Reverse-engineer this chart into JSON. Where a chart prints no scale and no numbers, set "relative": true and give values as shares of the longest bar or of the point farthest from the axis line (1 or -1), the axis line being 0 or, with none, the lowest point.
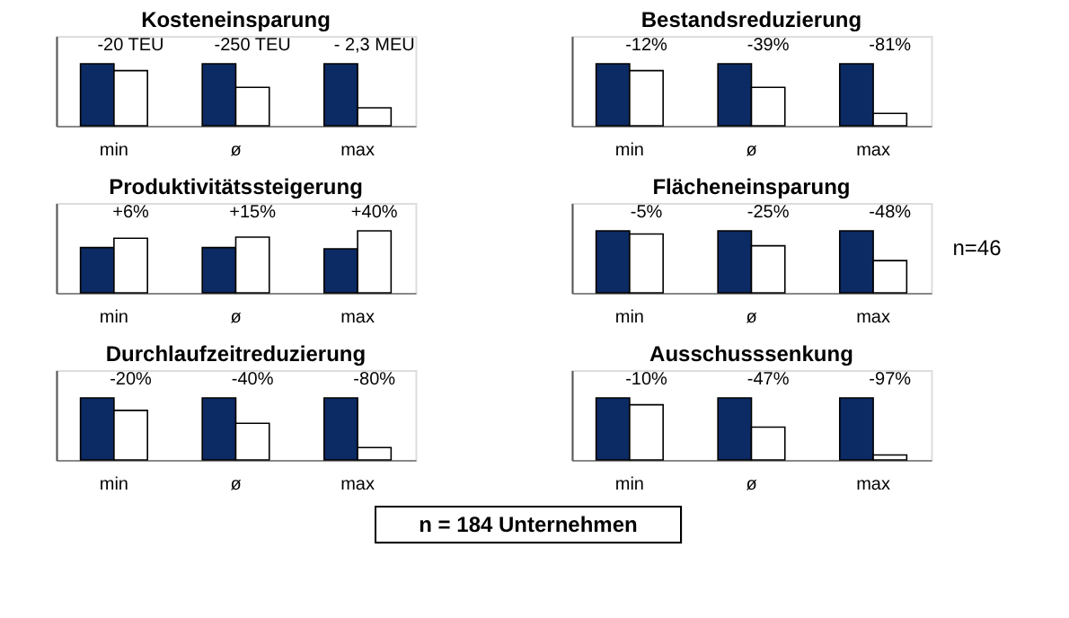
{
  "chart_data": [
    {
      "type": "bar",
      "title": "Kosteneinsparung",
      "categories": [
        "min",
        "ø",
        "max"
      ],
      "relative": true,
      "series": [
        {
          "color": "#0c2a63",
          "values": [
            1,
            1,
            1
          ]
        },
        {
          "color": "#ffffff",
          "values": [
            0.89,
            0.62,
            0.29
          ]
        }
      ],
      "annotations": [
        "-20 TEU",
        "-250 TEU",
        "- 2,3 MEU"
      ]
    },
    {
      "type": "bar",
      "title": "Bestandsreduzierung",
      "categories": [
        "min",
        "ø",
        "max"
      ],
      "relative": true,
      "series": [
        {
          "color": "#0c2a63",
          "values": [
            1,
            1,
            1
          ]
        },
        {
          "color": "#ffffff",
          "values": [
            0.89,
            0.62,
            0.2
          ]
        }
      ],
      "annotations": [
        "-12%",
        "-39%",
        "-81%"
      ]
    },
    {
      "type": "bar",
      "title": "Produktivitätssteigerung",
      "categories": [
        "min",
        "ø",
        "max"
      ],
      "relative": true,
      "series": [
        {
          "color": "#0c2a63",
          "values": [
            0.73,
            0.73,
            0.71
          ]
        },
        {
          "color": "#ffffff",
          "values": [
            0.88,
            0.9,
            1
          ]
        }
      ],
      "annotations": [
        "+6%",
        "+15%",
        "+40%"
      ]
    },
    {
      "type": "bar",
      "title": "Flächeneinsparung",
      "categories": [
        "min",
        "ø",
        "max"
      ],
      "relative": true,
      "series": [
        {
          "color": "#0c2a63",
          "values": [
            1,
            1,
            1
          ]
        },
        {
          "color": "#ffffff",
          "values": [
            0.95,
            0.76,
            0.52
          ]
        }
      ],
      "annotations": [
        "-5%",
        "-25%",
        "-48%",
        "n=46"
      ]
    },
    {
      "type": "bar",
      "title": "Durchlaufzeitreduzierung",
      "categories": [
        "min",
        "ø",
        "max"
      ],
      "relative": true,
      "series": [
        {
          "color": "#0c2a63",
          "values": [
            1,
            1,
            1
          ]
        },
        {
          "color": "#ffffff",
          "values": [
            0.8,
            0.59,
            0.2
          ]
        }
      ],
      "annotations": [
        "-20%",
        "-40%",
        "-80%"
      ]
    },
    {
      "type": "bar",
      "title": "Ausschusssenkung",
      "categories": [
        "min",
        "ø",
        "max"
      ],
      "relative": true,
      "series": [
        {
          "color": "#0c2a63",
          "values": [
            1,
            1,
            1
          ]
        },
        {
          "color": "#ffffff",
          "values": [
            0.89,
            0.53,
            0.08
          ]
        }
      ],
      "annotations": [
        "-10%",
        "-47%",
        "-97%"
      ]
    },
    {
      "type": "other",
      "annotations": [
        "n = 184 Unternehmen"
      ]
    }
  ]
}
